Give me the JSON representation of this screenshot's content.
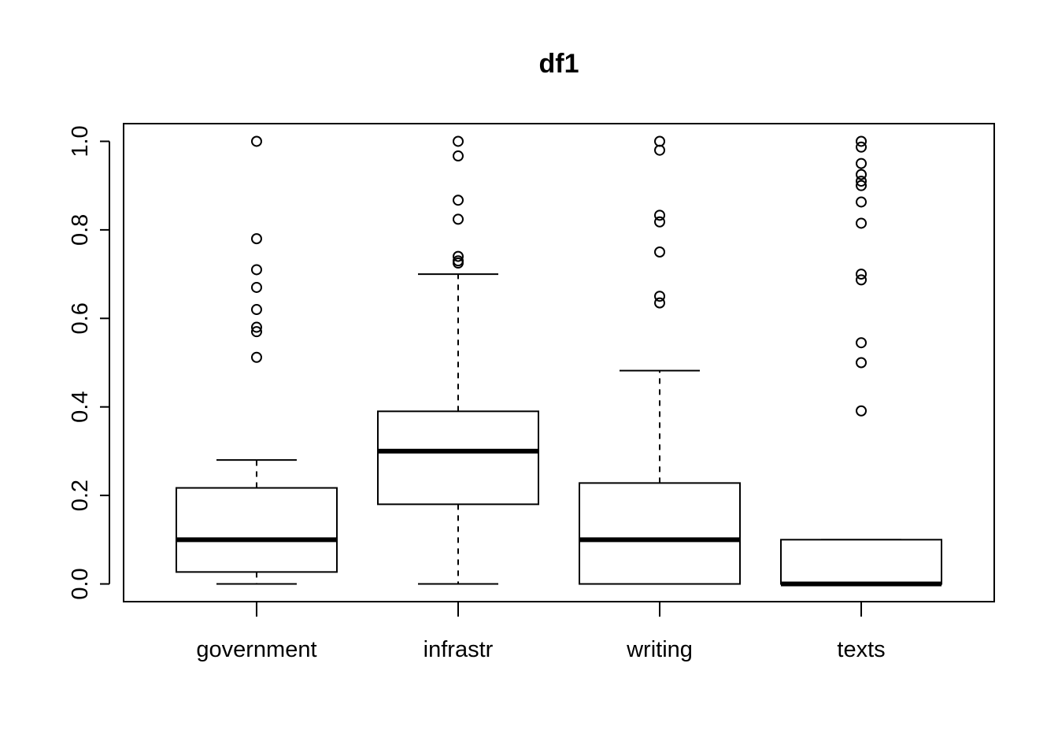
{
  "chart_data": {
    "type": "boxplot",
    "title": "df1",
    "xlabel": "",
    "ylabel": "",
    "ylim": [
      -0.04,
      1.04
    ],
    "yticks": [
      0.0,
      0.2,
      0.4,
      0.6,
      0.8,
      1.0
    ],
    "ytick_labels": [
      "0.0",
      "0.2",
      "0.4",
      "0.6",
      "0.8",
      "1.0"
    ],
    "categories": [
      "government",
      "infrastr",
      "writing",
      "texts"
    ],
    "boxes": [
      {
        "name": "government",
        "whisker_low": 0.0,
        "q1": 0.027,
        "median": 0.1,
        "q3": 0.217,
        "whisker_high": 0.28,
        "outliers": [
          1.0,
          0.78,
          0.71,
          0.67,
          0.62,
          0.58,
          0.57,
          0.512
        ]
      },
      {
        "name": "infrastr",
        "whisker_low": 0.0,
        "q1": 0.18,
        "median": 0.3,
        "q3": 0.39,
        "whisker_high": 0.7,
        "outliers": [
          1.0,
          0.967,
          0.867,
          0.824,
          0.74,
          0.73,
          0.725
        ]
      },
      {
        "name": "writing",
        "whisker_low": 0.0,
        "q1": 0.0,
        "median": 0.1,
        "q3": 0.228,
        "whisker_high": 0.482,
        "outliers": [
          1.0,
          0.98,
          0.833,
          0.818,
          0.75,
          0.65,
          0.635
        ]
      },
      {
        "name": "texts",
        "whisker_low": 0.0,
        "q1": 0.0,
        "median": 0.0,
        "q3": 0.1,
        "whisker_high": 0.1,
        "outliers": [
          1.0,
          0.987,
          0.95,
          0.925,
          0.91,
          0.9,
          0.863,
          0.815,
          0.7,
          0.687,
          0.545,
          0.5,
          0.391
        ]
      }
    ]
  }
}
